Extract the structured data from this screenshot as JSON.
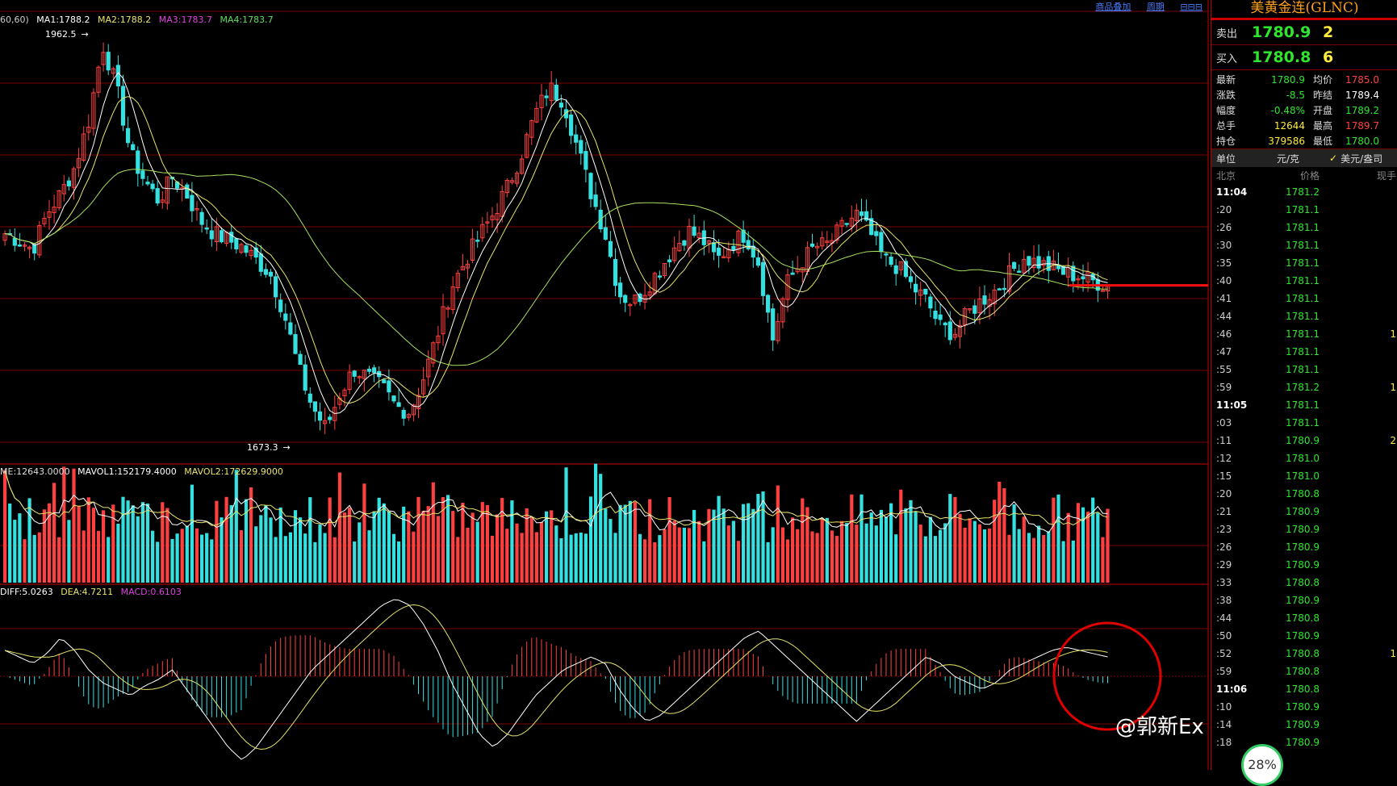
{
  "top_links": [
    "商品叠加",
    "周期",
    "⊟⊟⊟"
  ],
  "main_legend": {
    "prefix": "60,60)",
    "ma1": "MA1:1788.2",
    "ma2": "MA2:1788.2",
    "ma3": "MA3:1783.7",
    "ma4": "MA4:1783.7"
  },
  "vol_legend": {
    "vol": "ME:12643.0000",
    "mavol1": "MAVOL1:152179.4000",
    "mavol2": "MAVOL2:172629.9000"
  },
  "macd_legend": {
    "diff": "DIFF:5.0263",
    "dea": "DEA:4.7211",
    "macd": "MACD:0.6103"
  },
  "high_marker": "1962.5",
  "low_marker": "1673.3",
  "colors": {
    "up": "#ff4040",
    "down": "#35e0e0",
    "ma_white": "#ffffff",
    "ma_yellow": "#e8e46a",
    "ma_green": "#a8e060",
    "grid": "#7a0000",
    "highlight_circle": "#e00000"
  },
  "panel": {
    "title": "美黄金连(GLNC)",
    "sell": {
      "label": "卖出",
      "price": "1780.9",
      "qty": "2"
    },
    "buy": {
      "label": "买入",
      "price": "1780.8",
      "qty": "6"
    },
    "stats": [
      {
        "l1": "最新",
        "v1": "1780.9",
        "c1": "#2ee62e",
        "l2": "均价",
        "v2": "1785.0",
        "c2": "#ff4040"
      },
      {
        "l1": "涨跌",
        "v1": "-8.5",
        "c1": "#2ee62e",
        "l2": "昨结",
        "v2": "1789.4",
        "c2": "#ffffff"
      },
      {
        "l1": "幅度",
        "v1": "-0.48%",
        "c1": "#2ee62e",
        "l2": "开盘",
        "v2": "1789.2",
        "c2": "#2ee62e"
      },
      {
        "l1": "总手",
        "v1": "12644",
        "c1": "#ffeb3b",
        "l2": "最高",
        "v2": "1789.7",
        "c2": "#ff4040"
      },
      {
        "l1": "持仓",
        "v1": "379586",
        "c1": "#ffeb3b",
        "l2": "最低",
        "v2": "1780.0",
        "c2": "#2ee62e"
      }
    ],
    "unit_label": "单位",
    "unit_value": "元/克",
    "currency_check": "✓",
    "currency_label": "美元/盎司",
    "tick_header": {
      "time": "北京",
      "price": "价格",
      "vol": "现手"
    },
    "ticks": [
      {
        "t": "11:04",
        "p": "1781.2",
        "v": "",
        "major": true
      },
      {
        "t": ":20",
        "p": "1781.1",
        "v": ""
      },
      {
        "t": ":26",
        "p": "1781.1",
        "v": ""
      },
      {
        "t": ":30",
        "p": "1781.1",
        "v": ""
      },
      {
        "t": ":35",
        "p": "1781.1",
        "v": ""
      },
      {
        "t": ":40",
        "p": "1781.1",
        "v": ""
      },
      {
        "t": ":41",
        "p": "1781.1",
        "v": ""
      },
      {
        "t": ":44",
        "p": "1781.1",
        "v": ""
      },
      {
        "t": ":46",
        "p": "1781.1",
        "v": "1"
      },
      {
        "t": ":47",
        "p": "1781.1",
        "v": ""
      },
      {
        "t": ":55",
        "p": "1781.1",
        "v": ""
      },
      {
        "t": ":59",
        "p": "1781.2",
        "v": "1"
      },
      {
        "t": "11:05",
        "p": "1781.1",
        "v": "",
        "major": true
      },
      {
        "t": ":03",
        "p": "1781.1",
        "v": ""
      },
      {
        "t": ":11",
        "p": "1780.9",
        "v": "2"
      },
      {
        "t": ":12",
        "p": "1781.0",
        "v": ""
      },
      {
        "t": ":15",
        "p": "1781.0",
        "v": ""
      },
      {
        "t": ":20",
        "p": "1780.8",
        "v": ""
      },
      {
        "t": ":21",
        "p": "1780.9",
        "v": ""
      },
      {
        "t": ":23",
        "p": "1780.9",
        "v": ""
      },
      {
        "t": ":26",
        "p": "1780.9",
        "v": ""
      },
      {
        "t": ":29",
        "p": "1780.9",
        "v": ""
      },
      {
        "t": ":33",
        "p": "1780.8",
        "v": ""
      },
      {
        "t": ":38",
        "p": "1780.9",
        "v": ""
      },
      {
        "t": ":44",
        "p": "1780.8",
        "v": ""
      },
      {
        "t": ":50",
        "p": "1780.9",
        "v": ""
      },
      {
        "t": ":52",
        "p": "1780.8",
        "v": "1"
      },
      {
        "t": ":59",
        "p": "1780.8",
        "v": ""
      },
      {
        "t": "11:06",
        "p": "1780.8",
        "v": "",
        "major": true
      },
      {
        "t": ":10",
        "p": "1780.9",
        "v": ""
      },
      {
        "t": ":14",
        "p": "1780.9",
        "v": ""
      },
      {
        "t": ":18",
        "p": "1780.9",
        "v": ""
      }
    ]
  },
  "watermark": "@郭新Ex",
  "progress_badge": "28%",
  "chart_data": {
    "type": "candlestick",
    "price_points": [
      1820,
      1815,
      1808,
      1835,
      1850,
      1870,
      1905,
      1962.5,
      1930,
      1880,
      1860,
      1845,
      1862,
      1850,
      1830,
      1820,
      1815,
      1810,
      1800,
      1790,
      1760,
      1720,
      1690,
      1673.3,
      1700,
      1718,
      1712,
      1705,
      1690,
      1686,
      1712,
      1745,
      1780,
      1800,
      1818,
      1835,
      1855,
      1880,
      1910,
      1930,
      1920,
      1885,
      1850,
      1820,
      1775,
      1768,
      1780,
      1795,
      1810,
      1822,
      1815,
      1800,
      1812,
      1820,
      1798,
      1740,
      1782,
      1798,
      1810,
      1812,
      1825,
      1835,
      1820,
      1800,
      1795,
      1780,
      1770,
      1750,
      1745,
      1760,
      1770,
      1778,
      1790,
      1802,
      1798,
      1794,
      1790,
      1788,
      1784,
      1781
    ],
    "volume": "two-color bars with MAVOL1/MAVOL2 lines",
    "macd_shape": [
      8,
      6,
      4,
      7,
      12,
      8,
      2,
      -2,
      -4,
      -6,
      -3,
      -1,
      2,
      -4,
      -10,
      -16,
      -22,
      -26,
      -22,
      -16,
      -10,
      -4,
      2,
      6,
      10,
      14,
      18,
      22,
      24,
      22,
      16,
      8,
      -2,
      -10,
      -18,
      -22,
      -18,
      -12,
      -6,
      -2,
      2,
      4,
      6,
      4,
      -4,
      -10,
      -14,
      -12,
      -8,
      -4,
      0,
      4,
      8,
      12,
      14,
      10,
      6,
      2,
      -2,
      -6,
      -10,
      -14,
      -10,
      -6,
      -2,
      2,
      6,
      4,
      0,
      -2,
      -4,
      -2,
      2,
      4,
      6,
      8,
      9,
      8,
      7,
      6
    ]
  }
}
